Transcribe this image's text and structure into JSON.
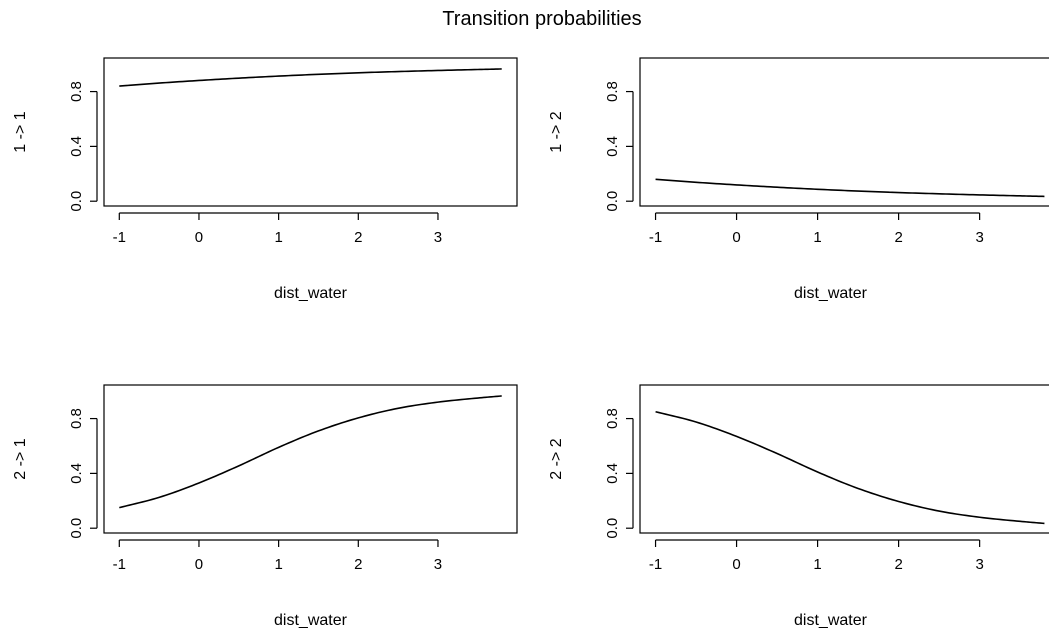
{
  "title": "Transition probabilities",
  "chart_data": [
    {
      "type": "line",
      "xlabel": "dist_water",
      "ylabel": "1 -> 1",
      "xlim": [
        -1,
        3.8
      ],
      "ylim": [
        0,
        1.0
      ],
      "xticks": [
        -1,
        0,
        1,
        2,
        3
      ],
      "xtick_labels": [
        "-1",
        "0",
        "1",
        "2",
        "3"
      ],
      "yticks": [
        0,
        0.4,
        0.8
      ],
      "ytick_labels": [
        "0.0",
        "0.4",
        "0.8"
      ],
      "x": [
        -1.0,
        -0.5,
        0.0,
        0.5,
        1.0,
        1.5,
        2.0,
        2.5,
        3.0,
        3.5,
        3.8
      ],
      "y": [
        0.84,
        0.862,
        0.881,
        0.898,
        0.913,
        0.926,
        0.937,
        0.946,
        0.954,
        0.961,
        0.965
      ]
    },
    {
      "type": "line",
      "xlabel": "dist_water",
      "ylabel": "1 -> 2",
      "xlim": [
        -1,
        3.8
      ],
      "ylim": [
        0,
        1.0
      ],
      "xticks": [
        -1,
        0,
        1,
        2,
        3
      ],
      "xtick_labels": [
        "-1",
        "0",
        "1",
        "2",
        "3"
      ],
      "yticks": [
        0,
        0.4,
        0.8
      ],
      "ytick_labels": [
        "0.0",
        "0.4",
        "0.8"
      ],
      "x": [
        -1.0,
        -0.5,
        0.0,
        0.5,
        1.0,
        1.5,
        2.0,
        2.5,
        3.0,
        3.5,
        3.8
      ],
      "y": [
        0.16,
        0.138,
        0.119,
        0.102,
        0.087,
        0.074,
        0.063,
        0.054,
        0.046,
        0.039,
        0.035
      ]
    },
    {
      "type": "line",
      "xlabel": "dist_water",
      "ylabel": "2 -> 1",
      "xlim": [
        -1,
        3.8
      ],
      "ylim": [
        0,
        1.0
      ],
      "xticks": [
        -1,
        0,
        1,
        2,
        3
      ],
      "xtick_labels": [
        "-1",
        "0",
        "1",
        "2",
        "3"
      ],
      "yticks": [
        0,
        0.4,
        0.8
      ],
      "ytick_labels": [
        "0.0",
        "0.4",
        "0.8"
      ],
      "x": [
        -1.0,
        -0.5,
        0.0,
        0.5,
        1.0,
        1.5,
        2.0,
        2.5,
        3.0,
        3.5,
        3.8
      ],
      "y": [
        0.15,
        0.225,
        0.33,
        0.455,
        0.59,
        0.71,
        0.805,
        0.875,
        0.92,
        0.95,
        0.965
      ]
    },
    {
      "type": "line",
      "xlabel": "dist_water",
      "ylabel": "2 -> 2",
      "xlim": [
        -1,
        3.8
      ],
      "ylim": [
        0,
        1.0
      ],
      "xticks": [
        -1,
        0,
        1,
        2,
        3
      ],
      "xtick_labels": [
        "-1",
        "0",
        "1",
        "2",
        "3"
      ],
      "yticks": [
        0,
        0.4,
        0.8
      ],
      "ytick_labels": [
        "0.0",
        "0.4",
        "0.8"
      ],
      "x": [
        -1.0,
        -0.5,
        0.0,
        0.5,
        1.0,
        1.5,
        2.0,
        2.5,
        3.0,
        3.5,
        3.8
      ],
      "y": [
        0.85,
        0.775,
        0.67,
        0.545,
        0.41,
        0.29,
        0.195,
        0.125,
        0.08,
        0.05,
        0.035
      ]
    }
  ]
}
